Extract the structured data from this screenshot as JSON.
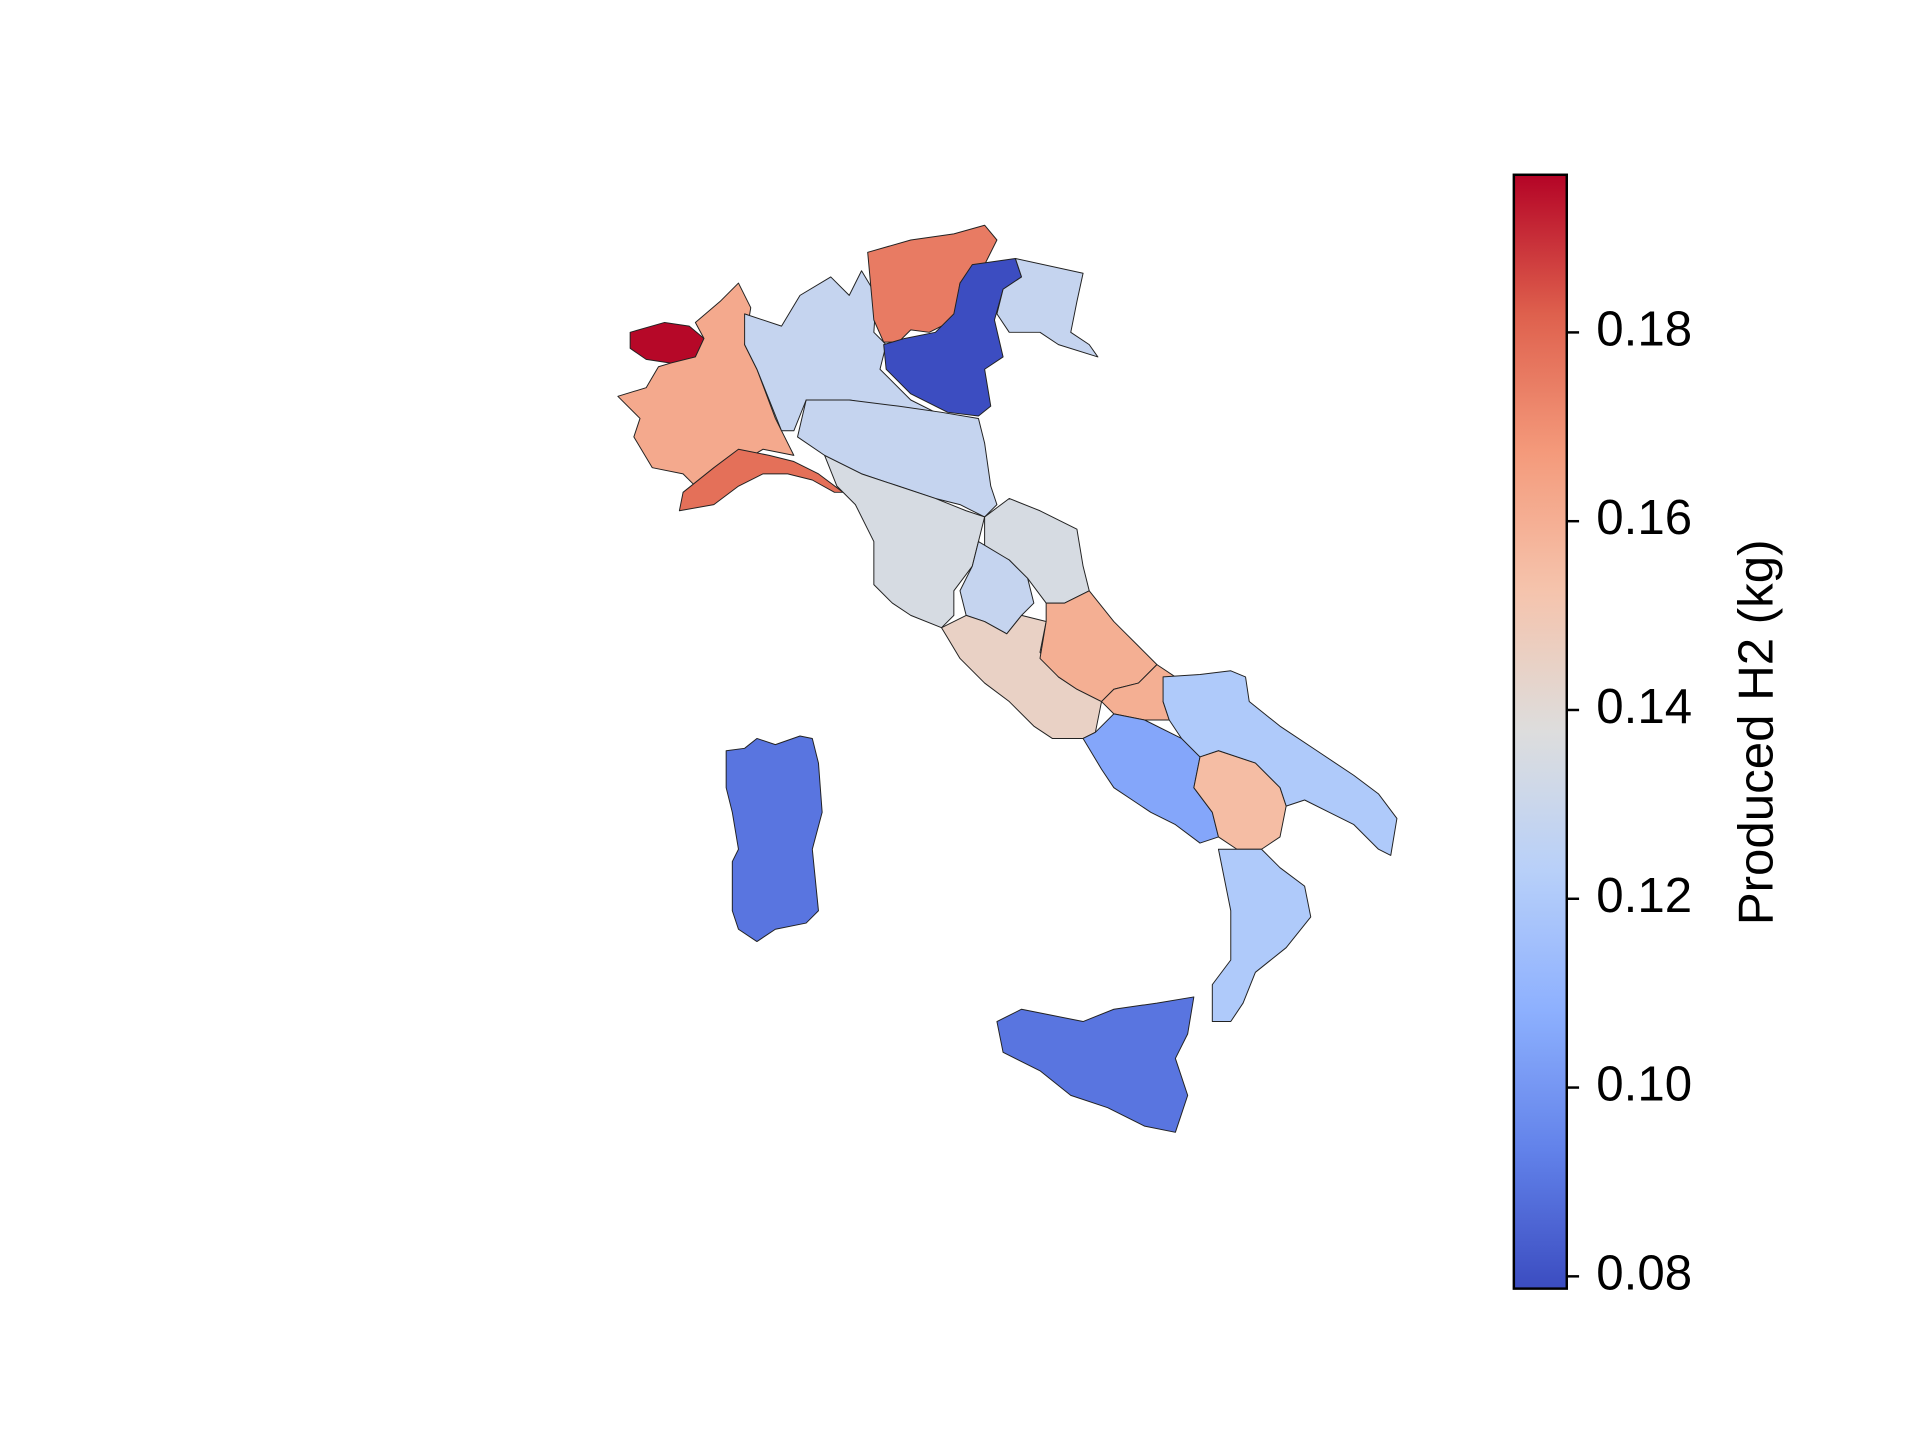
{
  "chart_data": {
    "type": "choropleth",
    "colorbar_label": "Produced H2 (kg)",
    "colormap": "coolwarm",
    "values": [
      0.196,
      0.162,
      0.178,
      0.128,
      0.175,
      0.079,
      0.128,
      0.128,
      0.135,
      0.135,
      0.128,
      0.145,
      0.16,
      0.16,
      0.105,
      0.12,
      0.155,
      0.12,
      0.09,
      0.09
    ],
    "clim": [
      0.0787,
      0.1967
    ],
    "cticks": [
      0.08,
      {
        "value": 0.1,
        "label": "0.10"
      },
      0.12,
      0.14,
      0.16,
      0.18
    ]
  }
}
